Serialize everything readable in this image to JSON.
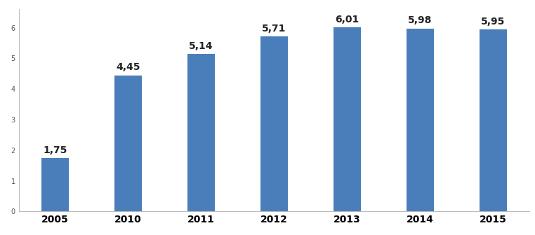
{
  "chart_data": {
    "type": "bar",
    "categories": [
      "2005",
      "2010",
      "2011",
      "2012",
      "2013",
      "2014",
      "2015"
    ],
    "values": [
      1.75,
      4.45,
      5.14,
      5.71,
      6.01,
      5.98,
      5.95
    ],
    "value_labels": [
      "1,75",
      "4,45",
      "5,14",
      "5,71",
      "6,01",
      "5,98",
      "5,95"
    ],
    "color": "#4a7ebb",
    "ylim": [
      0,
      6.6
    ],
    "yticks": [
      0,
      1,
      2,
      3,
      4,
      5,
      6
    ],
    "grid": false,
    "data_labels": true
  }
}
